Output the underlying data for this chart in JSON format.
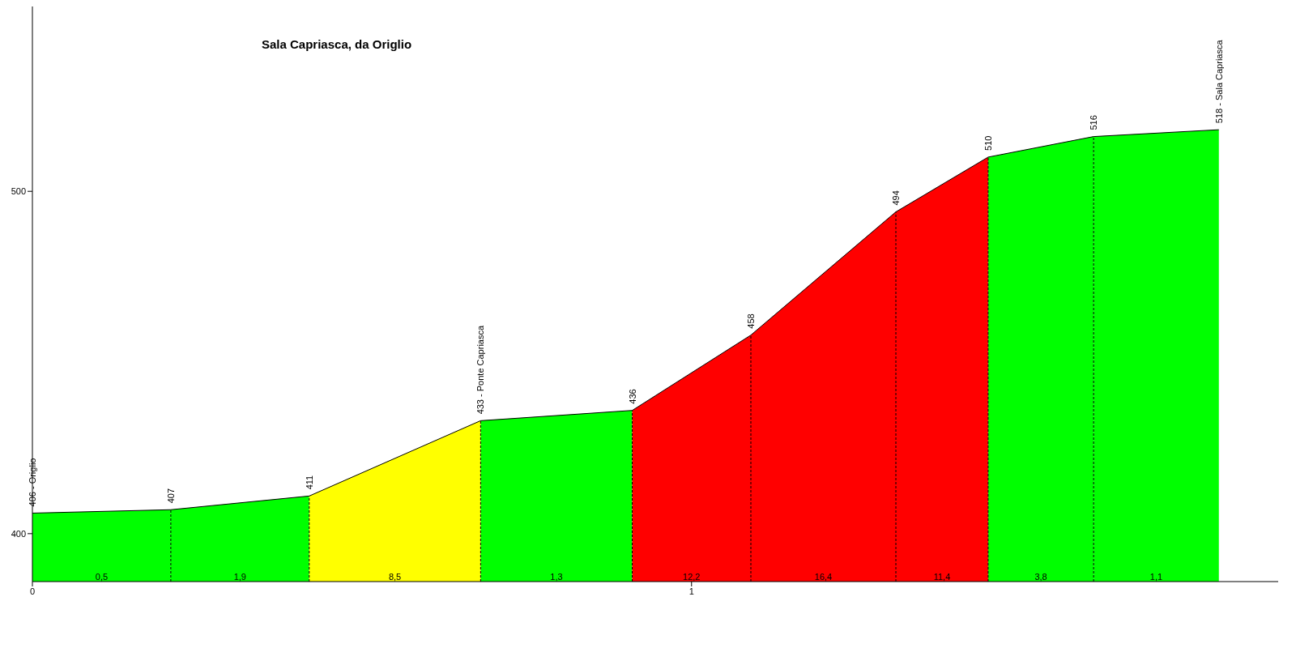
{
  "chart_data": {
    "type": "area",
    "title": "Sala Capriasca, da Origlio",
    "xlim": [
      0,
      1.89
    ],
    "xticks": [
      0,
      1
    ],
    "ylim": [
      386,
      554
    ],
    "yticks": [
      400,
      500
    ],
    "series": [
      {
        "type": "line",
        "color": "#000000",
        "x": [
          0,
          0.21,
          0.42,
          0.68,
          0.91,
          1.09,
          1.31,
          1.45,
          1.61,
          1.8
        ],
        "values": [
          406,
          407,
          411,
          433,
          436,
          458,
          494,
          510,
          516,
          518
        ],
        "value_labels": [
          "406 - Origlio",
          "407",
          "411",
          "433 - Ponte Capriasca",
          "436",
          "458",
          "494",
          "510",
          "516",
          "518 - Sala Capriasca"
        ]
      },
      {
        "color": "#00ff00",
        "x": [
          0,
          0.21
        ],
        "values": [
          406,
          407
        ]
      },
      {
        "color": "#00ff00",
        "x": [
          0.21,
          0.42
        ],
        "values": [
          407,
          411
        ]
      },
      {
        "color": "#ffff00",
        "x": [
          0.42,
          0.68
        ],
        "values": [
          411,
          433
        ]
      },
      {
        "color": "#00ff00",
        "x": [
          0.68,
          0.91
        ],
        "values": [
          433,
          436
        ]
      },
      {
        "color": "#ff0000",
        "x": [
          0.91,
          1.09
        ],
        "values": [
          436,
          458
        ]
      },
      {
        "color": "#ff0000",
        "x": [
          1.09,
          1.31
        ],
        "values": [
          458,
          494
        ]
      },
      {
        "color": "#ff0000",
        "x": [
          1.31,
          1.45
        ],
        "values": [
          494,
          510
        ]
      },
      {
        "color": "#00ff00",
        "x": [
          1.45,
          1.61
        ],
        "values": [
          510,
          516
        ]
      },
      {
        "color": "#00ff00",
        "x": [
          1.61,
          1.8
        ],
        "values": [
          516,
          518
        ]
      }
    ],
    "annotations": [
      "0,5",
      "1,9",
      "8,5",
      "1,3",
      "12,2",
      "16,4",
      "11,4",
      "3,8",
      "1,1"
    ]
  }
}
